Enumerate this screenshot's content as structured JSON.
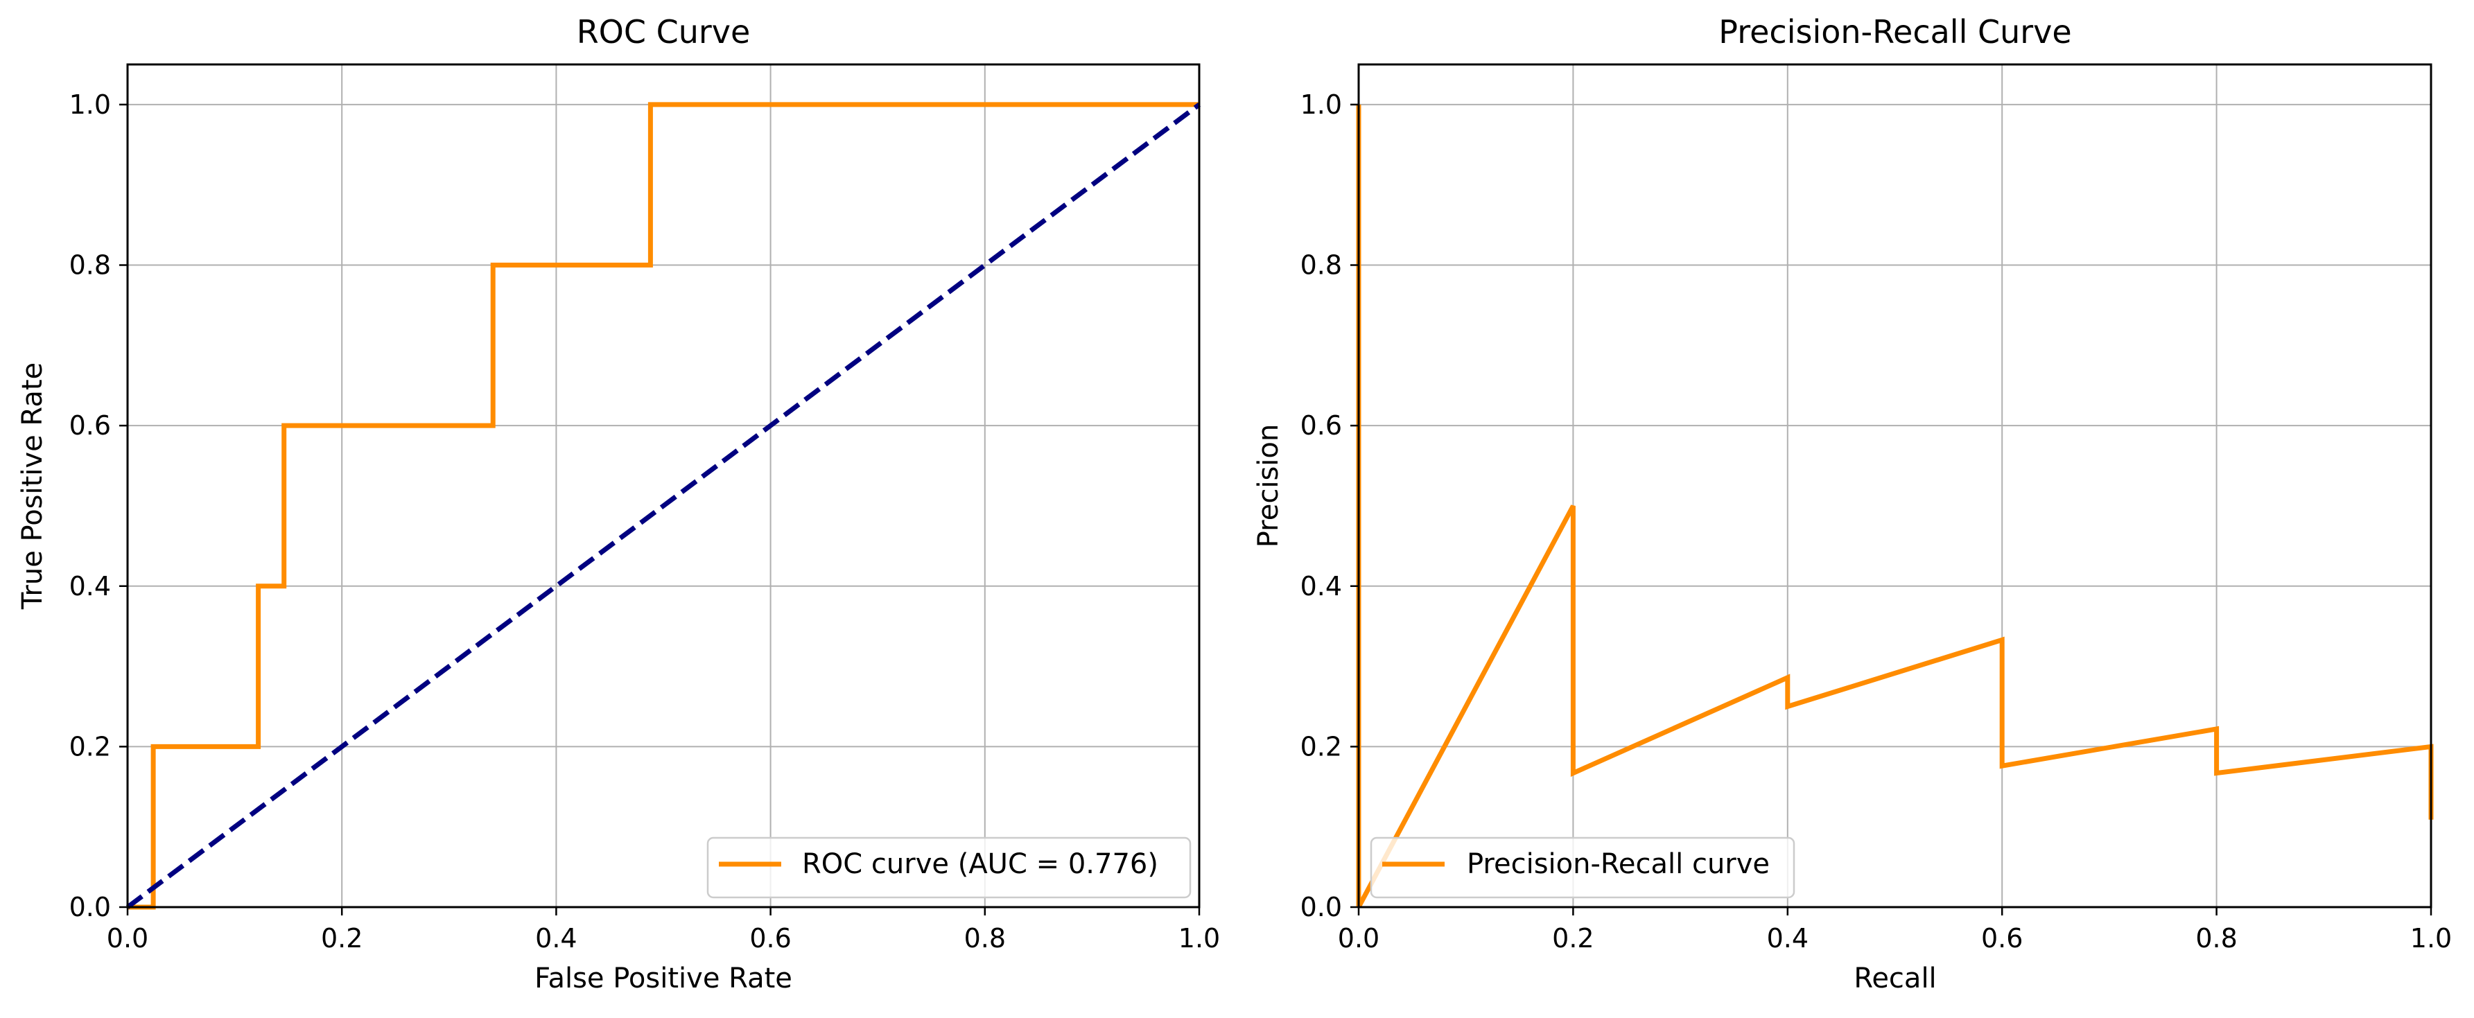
{
  "chart_data": [
    {
      "type": "line",
      "title": "ROC Curve",
      "xlabel": "False Positive Rate",
      "ylabel": "True Positive Rate",
      "xlim": [
        0.0,
        1.0
      ],
      "ylim": [
        0.0,
        1.05
      ],
      "xticks": [
        "0.0",
        "0.2",
        "0.4",
        "0.6",
        "0.8",
        "1.0"
      ],
      "yticks": [
        "0.0",
        "0.2",
        "0.4",
        "0.6",
        "0.8",
        "1.0"
      ],
      "grid": true,
      "legend_position": "lower right",
      "series": [
        {
          "name": "ROC curve (AUC = 0.776)",
          "color": "#ff8c00",
          "style": "solid",
          "x": [
            0.0,
            0.024,
            0.024,
            0.024,
            0.122,
            0.122,
            0.146,
            0.146,
            0.341,
            0.341,
            0.488,
            0.488,
            1.0
          ],
          "y": [
            0.0,
            0.0,
            0.2,
            0.2,
            0.2,
            0.4,
            0.4,
            0.6,
            0.6,
            0.8,
            0.8,
            1.0,
            1.0
          ]
        },
        {
          "name": "",
          "color": "#000080",
          "style": "dashed",
          "x": [
            0.0,
            1.0
          ],
          "y": [
            0.0,
            1.0
          ]
        }
      ]
    },
    {
      "type": "line",
      "title": "Precision-Recall Curve",
      "xlabel": "Recall",
      "ylabel": "Precision",
      "xlim": [
        0.0,
        1.0
      ],
      "ylim": [
        0.0,
        1.05
      ],
      "xticks": [
        "0.0",
        "0.2",
        "0.4",
        "0.6",
        "0.8",
        "1.0"
      ],
      "yticks": [
        "0.0",
        "0.2",
        "0.4",
        "0.6",
        "0.8",
        "1.0"
      ],
      "grid": true,
      "legend_position": "lower left",
      "series": [
        {
          "name": "Precision-Recall curve",
          "color": "#ff8c00",
          "style": "solid",
          "x": [
            0.0,
            0.0,
            0.2,
            0.2,
            0.4,
            0.4,
            0.6,
            0.6,
            0.8,
            0.8,
            1.0,
            1.0
          ],
          "y": [
            1.0,
            0.0,
            0.5,
            0.167,
            0.286,
            0.25,
            0.333,
            0.176,
            0.222,
            0.167,
            0.2,
            0.109
          ]
        }
      ]
    }
  ]
}
